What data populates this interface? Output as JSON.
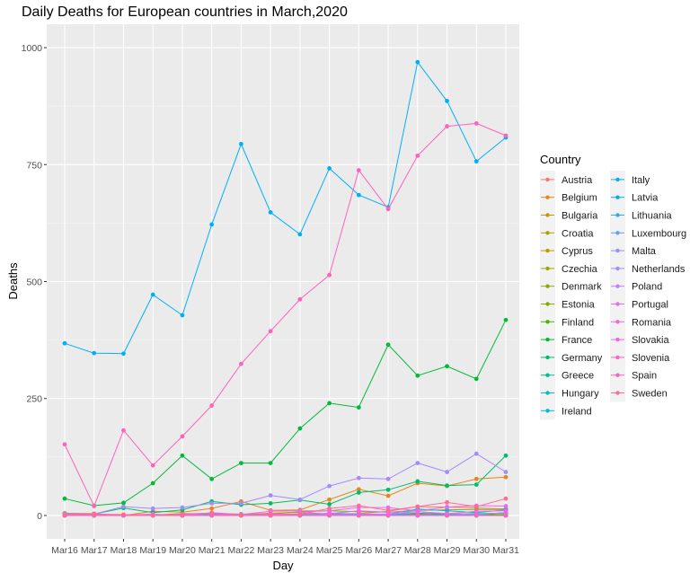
{
  "chart_data": {
    "type": "line",
    "title": "Daily Deaths for European countries in March,2020",
    "xlabel": "Day",
    "ylabel": "Deaths",
    "categories": [
      "Mar16",
      "Mar17",
      "Mar18",
      "Mar19",
      "Mar20",
      "Mar21",
      "Mar22",
      "Mar23",
      "Mar24",
      "Mar25",
      "Mar26",
      "Mar27",
      "Mar28",
      "Mar29",
      "Mar30",
      "Mar31"
    ],
    "yticks": [
      0,
      250,
      500,
      750,
      1000
    ],
    "ytick_labels": [
      "0",
      "250",
      "500",
      "750",
      "1000"
    ],
    "ylim": [
      -50,
      1050
    ],
    "grid": true,
    "legend": {
      "title": "Country",
      "position": "right",
      "columns": 2
    },
    "series": [
      {
        "name": "Austria",
        "color": "#F8766D",
        "values": [
          1,
          0,
          1,
          2,
          1,
          4,
          2,
          5,
          7,
          3,
          4,
          9,
          19,
          18,
          16,
          14
        ]
      },
      {
        "name": "Belgium",
        "color": "#E7851E",
        "values": [
          5,
          4,
          0,
          9,
          7,
          15,
          30,
          11,
          12,
          34,
          56,
          42,
          69,
          63,
          78,
          82
        ]
      },
      {
        "name": "Bulgaria",
        "color": "#D09400",
        "values": [
          1,
          0,
          0,
          0,
          0,
          1,
          0,
          0,
          1,
          0,
          0,
          2,
          1,
          0,
          0,
          0
        ]
      },
      {
        "name": "Croatia",
        "color": "#B2A100",
        "values": [
          0,
          0,
          0,
          0,
          1,
          0,
          0,
          0,
          1,
          0,
          1,
          1,
          1,
          0,
          2,
          1
        ]
      },
      {
        "name": "Cyprus",
        "color": "#C49A00",
        "values": [
          0,
          0,
          0,
          0,
          0,
          1,
          0,
          1,
          0,
          1,
          2,
          0,
          0,
          1,
          0,
          2
        ]
      },
      {
        "name": "Czechia",
        "color": "#A3A500",
        "values": [
          0,
          0,
          0,
          0,
          0,
          0,
          1,
          0,
          0,
          2,
          2,
          2,
          2,
          3,
          2,
          6
        ]
      },
      {
        "name": "Denmark",
        "color": "#89AC00",
        "values": [
          2,
          0,
          1,
          1,
          4,
          4,
          3,
          3,
          8,
          10,
          8,
          7,
          11,
          12,
          13,
          13
        ]
      },
      {
        "name": "Estonia",
        "color": "#7CAE00",
        "values": [
          0,
          0,
          0,
          0,
          0,
          0,
          0,
          0,
          0,
          1,
          0,
          0,
          0,
          0,
          1,
          0
        ]
      },
      {
        "name": "Finland",
        "color": "#45B500",
        "values": [
          0,
          0,
          0,
          0,
          0,
          1,
          0,
          0,
          0,
          2,
          0,
          2,
          3,
          1,
          2,
          2
        ]
      },
      {
        "name": "France",
        "color": "#00BA38",
        "values": [
          36,
          21,
          27,
          69,
          128,
          78,
          112,
          112,
          186,
          240,
          231,
          365,
          299,
          319,
          292,
          418
        ]
      },
      {
        "name": "Germany",
        "color": "#00BE67",
        "values": [
          4,
          3,
          16,
          6,
          12,
          30,
          23,
          26,
          33,
          24,
          49,
          55,
          73,
          64,
          66,
          128
        ]
      },
      {
        "name": "Greece",
        "color": "#00C08B",
        "values": [
          1,
          0,
          1,
          1,
          1,
          3,
          2,
          2,
          1,
          2,
          2,
          2,
          5,
          3,
          4,
          5
        ]
      },
      {
        "name": "Hungary",
        "color": "#00BFC4",
        "values": [
          0,
          0,
          1,
          0,
          0,
          3,
          1,
          1,
          0,
          5,
          3,
          1,
          2,
          1,
          1,
          6
        ]
      },
      {
        "name": "Ireland",
        "color": "#00BBDA",
        "values": [
          0,
          0,
          1,
          0,
          0,
          0,
          1,
          3,
          2,
          2,
          3,
          3,
          14,
          10,
          6,
          12
        ]
      },
      {
        "name": "Italy",
        "color": "#00B0F6",
        "values": [
          368,
          347,
          346,
          472,
          428,
          622,
          794,
          648,
          601,
          742,
          685,
          659,
          969,
          886,
          757,
          808
        ]
      },
      {
        "name": "Latvia",
        "color": "#00A9FF",
        "values": [
          0,
          0,
          0,
          0,
          0,
          0,
          0,
          0,
          0,
          0,
          0,
          0,
          0,
          0,
          0,
          0
        ]
      },
      {
        "name": "Lithuania",
        "color": "#35A2FF",
        "values": [
          0,
          0,
          0,
          0,
          1,
          0,
          0,
          0,
          1,
          1,
          1,
          1,
          2,
          1,
          0,
          0
        ]
      },
      {
        "name": "Luxembourg",
        "color": "#619CFF",
        "values": [
          0,
          0,
          1,
          0,
          2,
          4,
          0,
          0,
          0,
          2,
          1,
          3,
          0,
          1,
          0,
          0
        ]
      },
      {
        "name": "Malta",
        "color": "#9590FF",
        "values": [
          0,
          0,
          0,
          0,
          0,
          0,
          0,
          0,
          0,
          0,
          0,
          0,
          0,
          0,
          0,
          0
        ]
      },
      {
        "name": "Netherlands",
        "color": "#A58AFF",
        "values": [
          4,
          3,
          19,
          15,
          17,
          26,
          26,
          43,
          34,
          63,
          80,
          78,
          112,
          93,
          132,
          93
        ]
      },
      {
        "name": "Poland",
        "color": "#C77CFF",
        "values": [
          2,
          0,
          0,
          1,
          2,
          0,
          1,
          3,
          0,
          2,
          2,
          3,
          8,
          4,
          2,
          6
        ]
      },
      {
        "name": "Portugal",
        "color": "#E76BF3",
        "values": [
          0,
          1,
          1,
          3,
          0,
          6,
          2,
          9,
          10,
          10,
          17,
          17,
          10,
          18,
          21,
          20
        ]
      },
      {
        "name": "Romania",
        "color": "#F564E3",
        "values": [
          0,
          0,
          0,
          0,
          0,
          1,
          1,
          1,
          4,
          4,
          10,
          7,
          8,
          4,
          9,
          10
        ]
      },
      {
        "name": "Slovakia",
        "color": "#FA62DB",
        "values": [
          0,
          0,
          0,
          0,
          0,
          0,
          0,
          0,
          0,
          0,
          0,
          0,
          0,
          0,
          0,
          0
        ]
      },
      {
        "name": "Slovenia",
        "color": "#FF61C3",
        "values": [
          0,
          1,
          0,
          0,
          0,
          0,
          0,
          0,
          0,
          0,
          1,
          0,
          1,
          0,
          0,
          0
        ]
      },
      {
        "name": "Spain",
        "color": "#FF62BC",
        "values": [
          152,
          20,
          182,
          107,
          169,
          235,
          324,
          394,
          462,
          514,
          738,
          655,
          769,
          832,
          838,
          812
        ]
      },
      {
        "name": "Sweden",
        "color": "#FF6C91",
        "values": [
          2,
          3,
          2,
          0,
          3,
          5,
          0,
          3,
          3,
          15,
          21,
          11,
          19,
          28,
          19,
          36
        ]
      }
    ]
  }
}
